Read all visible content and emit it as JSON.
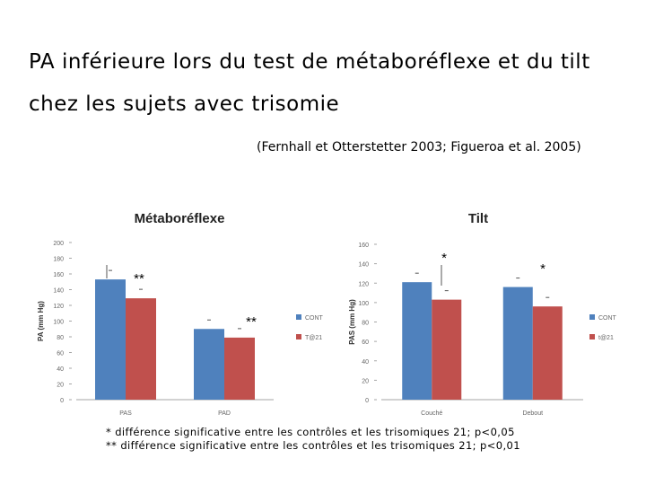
{
  "slide": {
    "title": "PA inférieure lors du test de métaboréflexe et du tilt chez les sujets avec trisomie",
    "citation": "(Fernhall et Otterstetter 2003; Figueroa et al. 2005)",
    "footnotes": [
      "* différence significative entre les contrôles et les trisomiques 21; p<0,05",
      "** différence significative entre les contrôles et les trisomiques 21; p<0,01"
    ]
  },
  "colors": {
    "cont": "#4F81BD",
    "t21": "#C0504D",
    "axis": "#a6a6a6"
  },
  "chart_data": [
    {
      "type": "bar",
      "title": "Métaboréflexe",
      "ylabel": "PA (mm Hg)",
      "ylim": [
        0,
        200
      ],
      "yticks": [
        "0",
        "20",
        "40",
        "60",
        "80",
        "100",
        "120",
        "140",
        "160",
        "180",
        "200"
      ],
      "categories": [
        "PAS",
        "PAD"
      ],
      "series": [
        {
          "name": "CONT",
          "values": [
            153,
            90
          ]
        },
        {
          "name": "T@21",
          "values": [
            129,
            79
          ]
        }
      ],
      "annotations": [
        {
          "category": 0,
          "text": "**"
        },
        {
          "category": 1,
          "text": "**"
        }
      ],
      "legend": "right"
    },
    {
      "type": "bar",
      "title": "Tilt",
      "ylabel": "PAS (mm Hg)",
      "ylim": [
        0,
        160
      ],
      "yticks": [
        "0",
        "20",
        "40",
        "60",
        "80",
        "100",
        "120",
        "140",
        "160"
      ],
      "categories": [
        "Couché",
        "Debout"
      ],
      "series": [
        {
          "name": "CONT",
          "values": [
            121,
            116
          ]
        },
        {
          "name": "t@21",
          "values": [
            103,
            96
          ]
        }
      ],
      "annotations": [
        {
          "category": 0,
          "text": "*"
        },
        {
          "category": 1,
          "text": "*"
        }
      ],
      "legend": "right"
    }
  ]
}
